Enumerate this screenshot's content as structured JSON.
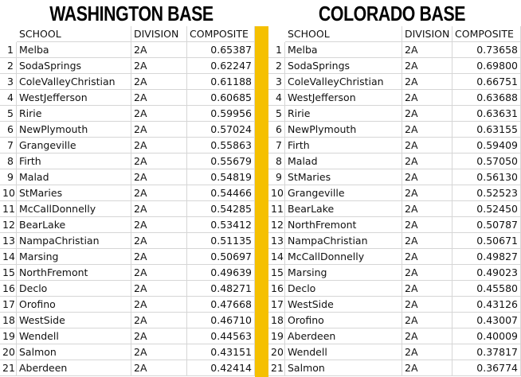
{
  "tables": [
    {
      "title": "WASHINGTON BASE",
      "columns": [
        "SCHOOL",
        "DIVISION",
        "COMPOSITE"
      ],
      "rows": [
        [
          1,
          "Melba",
          "2A",
          "0.65387"
        ],
        [
          2,
          "SodaSprings",
          "2A",
          "0.62247"
        ],
        [
          3,
          "ColeValleyChristian",
          "2A",
          "0.61188"
        ],
        [
          4,
          "WestJefferson",
          "2A",
          "0.60685"
        ],
        [
          5,
          "Ririe",
          "2A",
          "0.59956"
        ],
        [
          6,
          "NewPlymouth",
          "2A",
          "0.57024"
        ],
        [
          7,
          "Grangeville",
          "2A",
          "0.55863"
        ],
        [
          8,
          "Firth",
          "2A",
          "0.55679"
        ],
        [
          9,
          "Malad",
          "2A",
          "0.54819"
        ],
        [
          10,
          "StMaries",
          "2A",
          "0.54466"
        ],
        [
          11,
          "McCallDonnelly",
          "2A",
          "0.54285"
        ],
        [
          12,
          "BearLake",
          "2A",
          "0.53412"
        ],
        [
          13,
          "NampaChristian",
          "2A",
          "0.51135"
        ],
        [
          14,
          "Marsing",
          "2A",
          "0.50697"
        ],
        [
          15,
          "NorthFremont",
          "2A",
          "0.49639"
        ],
        [
          16,
          "Declo",
          "2A",
          "0.48271"
        ],
        [
          17,
          "Orofino",
          "2A",
          "0.47668"
        ],
        [
          18,
          "WestSide",
          "2A",
          "0.46710"
        ],
        [
          19,
          "Wendell",
          "2A",
          "0.44563"
        ],
        [
          20,
          "Salmon",
          "2A",
          "0.43151"
        ],
        [
          21,
          "Aberdeen",
          "2A",
          "0.42414"
        ]
      ]
    },
    {
      "title": "COLORADO BASE",
      "columns": [
        "SCHOOL",
        "DIVISION",
        "COMPOSITE"
      ],
      "rows": [
        [
          1,
          "Melba",
          "2A",
          "0.73658"
        ],
        [
          2,
          "SodaSprings",
          "2A",
          "0.69800"
        ],
        [
          3,
          "ColeValleyChristian",
          "2A",
          "0.66751"
        ],
        [
          4,
          "WestJefferson",
          "2A",
          "0.63688"
        ],
        [
          5,
          "Ririe",
          "2A",
          "0.63631"
        ],
        [
          6,
          "NewPlymouth",
          "2A",
          "0.63155"
        ],
        [
          7,
          "Firth",
          "2A",
          "0.59409"
        ],
        [
          8,
          "Malad",
          "2A",
          "0.57050"
        ],
        [
          9,
          "StMaries",
          "2A",
          "0.56130"
        ],
        [
          10,
          "Grangeville",
          "2A",
          "0.52523"
        ],
        [
          11,
          "BearLake",
          "2A",
          "0.52450"
        ],
        [
          12,
          "NorthFremont",
          "2A",
          "0.50787"
        ],
        [
          13,
          "NampaChristian",
          "2A",
          "0.50671"
        ],
        [
          14,
          "McCallDonnelly",
          "2A",
          "0.49827"
        ],
        [
          15,
          "Marsing",
          "2A",
          "0.49023"
        ],
        [
          16,
          "Declo",
          "2A",
          "0.45580"
        ],
        [
          17,
          "WestSide",
          "2A",
          "0.43126"
        ],
        [
          18,
          "Orofino",
          "2A",
          "0.43007"
        ],
        [
          19,
          "Aberdeen",
          "2A",
          "0.40009"
        ],
        [
          20,
          "Wendell",
          "2A",
          "0.37817"
        ],
        [
          21,
          "Salmon",
          "2A",
          "0.36774"
        ]
      ]
    }
  ]
}
